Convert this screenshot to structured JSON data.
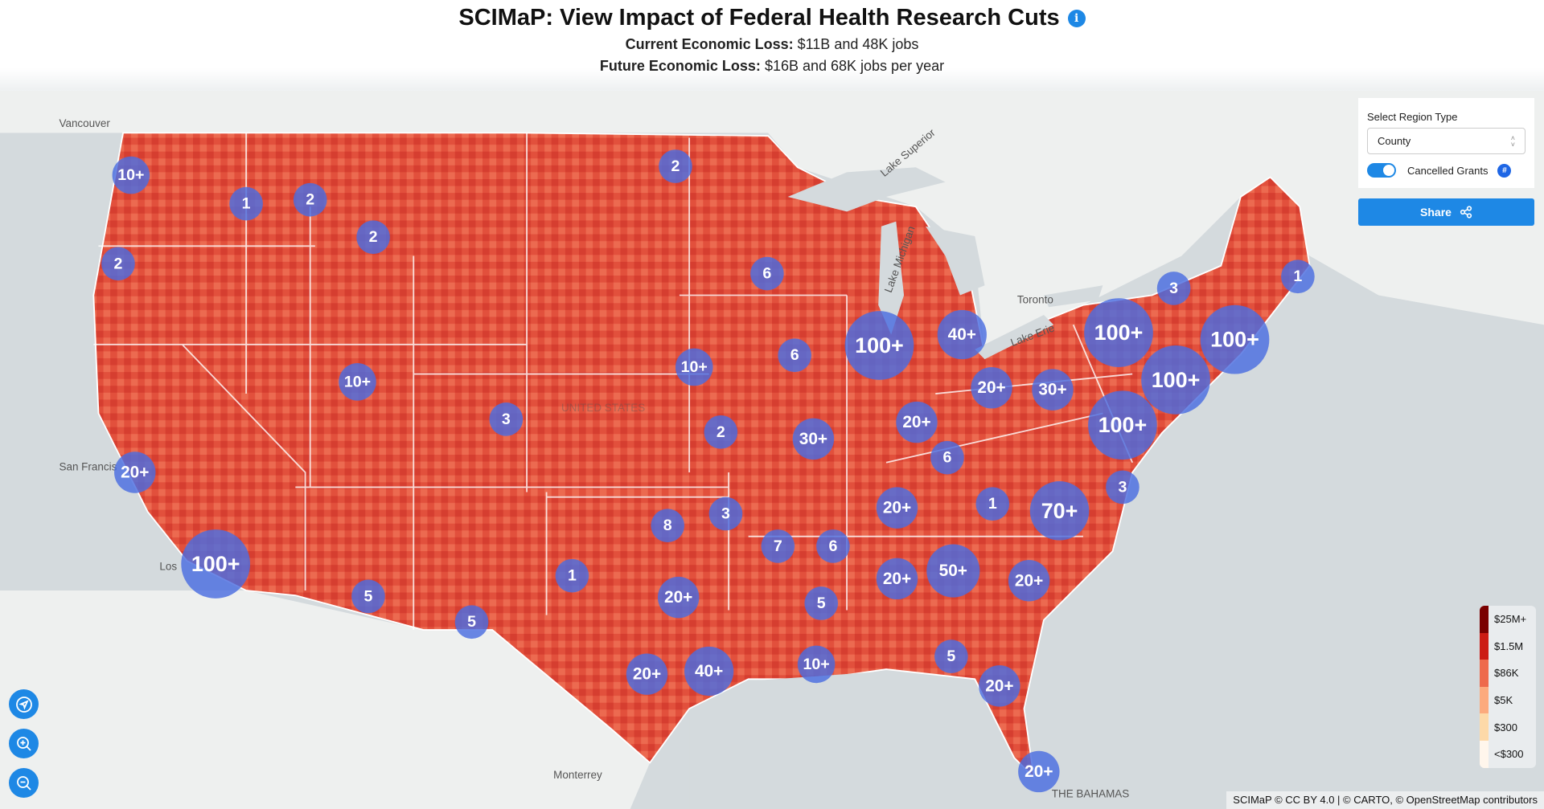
{
  "header": {
    "title": "SCIMaP: View Impact of Federal Health Research Cuts",
    "info_icon": "i",
    "current_label": "Current Economic Loss:",
    "current_value": " $11B and 48K jobs",
    "future_label": "Future Economic Loss:",
    "future_value": " $16B and 68K jobs per year"
  },
  "panel": {
    "region_label": "Select Region Type",
    "region_value": "County",
    "toggle_label": "Cancelled Grants",
    "toggle_on": true,
    "hash_badge": "#",
    "share_label": "Share"
  },
  "legend": {
    "items": [
      {
        "label": "$25M+",
        "color": "#7a0000"
      },
      {
        "label": "$1.5M",
        "color": "#cc1c14"
      },
      {
        "label": "$86K",
        "color": "#ee6a4c"
      },
      {
        "label": "$5K",
        "color": "#fcaa7d"
      },
      {
        "label": "$300",
        "color": "#fdd9a8"
      },
      {
        "label": "<$300",
        "color": "#fff6ec"
      }
    ]
  },
  "places": {
    "vancouver": "Vancouver",
    "sanfran": "San Francis",
    "la": "Los",
    "toronto": "Toronto",
    "monterrey": "Monterrey",
    "bahamas": "THE BAHAMAS",
    "us": "UNITED STATES",
    "superior": "Lake Superior",
    "michigan": "Lake Michigan",
    "erie": "Lake Erie"
  },
  "clusters": [
    "10+",
    "1",
    "2",
    "2",
    "2",
    "2",
    "6",
    "1",
    "3",
    "100+",
    "100+",
    "100+",
    "40+",
    "6",
    "10+",
    "10+",
    "100+",
    "20+",
    "30+",
    "3",
    "20+",
    "2",
    "30+",
    "100+",
    "20+",
    "6",
    "3",
    "20+",
    "1",
    "70+",
    "8",
    "3",
    "7",
    "6",
    "100+",
    "1",
    "5",
    "20+",
    "20+",
    "50+",
    "20+",
    "5",
    "5",
    "20+",
    "40+",
    "10+",
    "5",
    "20+",
    "20+"
  ],
  "attribution": "SCIMaP © CC BY 4.0 | © CARTO, © OpenStreetMap contributors"
}
